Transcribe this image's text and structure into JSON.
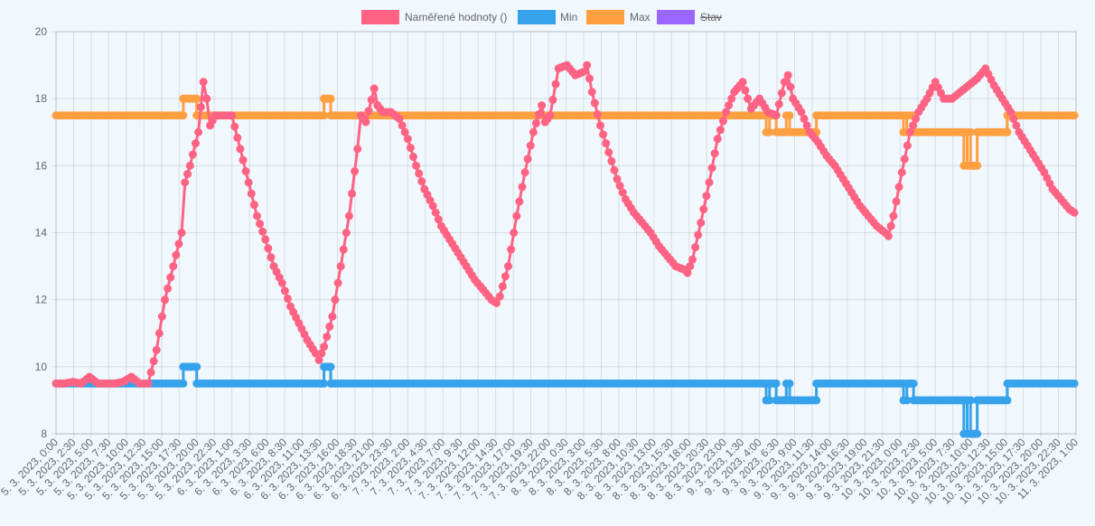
{
  "chart_data": {
    "type": "line",
    "title": "",
    "xlabel": "",
    "ylabel": "",
    "ylim": [
      8,
      20
    ],
    "yticks": [
      8,
      10,
      12,
      14,
      16,
      18,
      20
    ],
    "grid": true,
    "legend_position": "top",
    "x_labels": [
      "5. 3. 2023, 0:00",
      "5. 3. 2023, 2:30",
      "5. 3. 2023, 5:00",
      "5. 3. 2023, 7:30",
      "5. 3. 2023, 10:00",
      "5. 3. 2023, 12:30",
      "5. 3. 2023, 15:00",
      "5. 3. 2023, 17:30",
      "5. 3. 2023, 20:00",
      "5. 3. 2023, 22:30",
      "6. 3. 2023, 1:00",
      "6. 3. 2023, 3:30",
      "6. 3. 2023, 6:00",
      "6. 3. 2023, 8:30",
      "6. 3. 2023, 11:00",
      "6. 3. 2023, 13:30",
      "6. 3. 2023, 16:00",
      "6. 3. 2023, 18:30",
      "6. 3. 2023, 21:00",
      "6. 3. 2023, 23:30",
      "7. 3. 2023, 2:00",
      "7. 3. 2023, 4:30",
      "7. 3. 2023, 7:00",
      "7. 3. 2023, 9:30",
      "7. 3. 2023, 12:00",
      "7. 3. 2023, 14:30",
      "7. 3. 2023, 17:00",
      "7. 3. 2023, 19:30",
      "7. 3. 2023, 22:00",
      "8. 3. 2023, 0:30",
      "8. 3. 2023, 3:00",
      "8. 3. 2023, 5:30",
      "8. 3. 2023, 8:00",
      "8. 3. 2023, 10:30",
      "8. 3. 2023, 13:00",
      "8. 3. 2023, 15:30",
      "8. 3. 2023, 18:00",
      "8. 3. 2023, 20:30",
      "8. 3. 2023, 23:00",
      "9. 3. 2023, 1:30",
      "9. 3. 2023, 4:00",
      "9. 3. 2023, 6:30",
      "9. 3. 2023, 9:00",
      "9. 3. 2023, 11:30",
      "9. 3. 2023, 14:00",
      "9. 3. 2023, 16:30",
      "9. 3. 2023, 19:00",
      "9. 3. 2023, 21:30",
      "10. 3. 2023, 0:00",
      "10. 3. 2023, 2:30",
      "10. 3. 2023, 5:00",
      "10. 3. 2023, 7:30",
      "10. 3. 2023, 10:00",
      "10. 3. 2023, 12:30",
      "10. 3. 2023, 15:00",
      "10. 3. 2023, 17:30",
      "10. 3. 2023, 20:00",
      "10. 3. 2023, 22:30",
      "11. 3. 2023, 1:00"
    ],
    "series": [
      {
        "name": "Naměřené hodnoty ()",
        "color": "#ff6384",
        "hidden": false,
        "points": [
          [
            0,
            9.5
          ],
          [
            2.5,
            9.5
          ],
          [
            5,
            9.55
          ],
          [
            7.5,
            9.5
          ],
          [
            10,
            9.7
          ],
          [
            12.5,
            9.5
          ],
          [
            15,
            9.5
          ],
          [
            17.5,
            9.5
          ],
          [
            20,
            9.55
          ],
          [
            22.5,
            9.7
          ],
          [
            25,
            9.5
          ],
          [
            27.5,
            9.5
          ],
          [
            30,
            10.5
          ],
          [
            32.5,
            12.0
          ],
          [
            35,
            13.0
          ],
          [
            37.5,
            14.0
          ],
          [
            38.5,
            15.5
          ],
          [
            40,
            16.0
          ],
          [
            42.5,
            17.0
          ],
          [
            44,
            18.5
          ],
          [
            45,
            18.0
          ],
          [
            46,
            17.2
          ],
          [
            47.5,
            17.5
          ],
          [
            50,
            17.5
          ],
          [
            52.5,
            17.5
          ],
          [
            55,
            16.5
          ],
          [
            57.5,
            15.5
          ],
          [
            60,
            14.5
          ],
          [
            62.5,
            13.8
          ],
          [
            65,
            13.0
          ],
          [
            67.5,
            12.5
          ],
          [
            70,
            11.8
          ],
          [
            72.5,
            11.3
          ],
          [
            75,
            10.8
          ],
          [
            77.5,
            10.4
          ],
          [
            78.5,
            10.2
          ],
          [
            80,
            10.6
          ],
          [
            82.5,
            11.5
          ],
          [
            85,
            13.0
          ],
          [
            87.5,
            14.5
          ],
          [
            90,
            16.5
          ],
          [
            91,
            17.5
          ],
          [
            92.5,
            17.3
          ],
          [
            95,
            18.3
          ],
          [
            96,
            17.8
          ],
          [
            97.5,
            17.6
          ],
          [
            100,
            17.6
          ],
          [
            102.5,
            17.4
          ],
          [
            105,
            16.8
          ],
          [
            107.5,
            16.0
          ],
          [
            110,
            15.3
          ],
          [
            112.5,
            14.8
          ],
          [
            115,
            14.2
          ],
          [
            117.5,
            13.8
          ],
          [
            120,
            13.4
          ],
          [
            122.5,
            13.0
          ],
          [
            125,
            12.6
          ],
          [
            127.5,
            12.3
          ],
          [
            130,
            12.0
          ],
          [
            131.5,
            11.9
          ],
          [
            132.5,
            12.1
          ],
          [
            135,
            13.0
          ],
          [
            137.5,
            14.5
          ],
          [
            140,
            15.8
          ],
          [
            142.5,
            17.0
          ],
          [
            145,
            17.8
          ],
          [
            146,
            17.3
          ],
          [
            147.5,
            17.5
          ],
          [
            150,
            18.9
          ],
          [
            152.5,
            19.0
          ],
          [
            155,
            18.7
          ],
          [
            157.5,
            18.8
          ],
          [
            158.5,
            19.0
          ],
          [
            160,
            18.2
          ],
          [
            162.5,
            17.2
          ],
          [
            165,
            16.4
          ],
          [
            167.5,
            15.6
          ],
          [
            170,
            15.0
          ],
          [
            172.5,
            14.6
          ],
          [
            175,
            14.3
          ],
          [
            177.5,
            14.0
          ],
          [
            180,
            13.6
          ],
          [
            182.5,
            13.3
          ],
          [
            185,
            13.0
          ],
          [
            187.5,
            12.9
          ],
          [
            188.5,
            12.8
          ],
          [
            190,
            13.2
          ],
          [
            192.5,
            14.3
          ],
          [
            195,
            15.5
          ],
          [
            197.5,
            16.8
          ],
          [
            200,
            17.6
          ],
          [
            202.5,
            18.2
          ],
          [
            205,
            18.5
          ],
          [
            206.5,
            18.0
          ],
          [
            207.5,
            17.7
          ],
          [
            210,
            18.0
          ],
          [
            212.5,
            17.6
          ],
          [
            215,
            17.5
          ],
          [
            217.5,
            18.5
          ],
          [
            218.5,
            18.7
          ],
          [
            220,
            18.0
          ],
          [
            222.5,
            17.6
          ],
          [
            225,
            17.0
          ],
          [
            227.5,
            16.7
          ],
          [
            230,
            16.3
          ],
          [
            232.5,
            16.0
          ],
          [
            235,
            15.6
          ],
          [
            237.5,
            15.2
          ],
          [
            240,
            14.8
          ],
          [
            242.5,
            14.5
          ],
          [
            245,
            14.2
          ],
          [
            247.5,
            14.0
          ],
          [
            248.5,
            13.9
          ],
          [
            250,
            14.5
          ],
          [
            252.5,
            15.8
          ],
          [
            255,
            17.0
          ],
          [
            257.5,
            17.6
          ],
          [
            260,
            18.0
          ],
          [
            262.5,
            18.5
          ],
          [
            265,
            18.0
          ],
          [
            267.5,
            18.0
          ],
          [
            270,
            18.2
          ],
          [
            272.5,
            18.4
          ],
          [
            275,
            18.6
          ],
          [
            277.5,
            18.9
          ],
          [
            280,
            18.4
          ],
          [
            282.5,
            18.0
          ],
          [
            285,
            17.6
          ],
          [
            287.5,
            17.0
          ],
          [
            290,
            16.6
          ],
          [
            292.5,
            16.2
          ],
          [
            295,
            15.8
          ],
          [
            297.5,
            15.3
          ],
          [
            300,
            15.0
          ],
          [
            302.5,
            14.7
          ],
          [
            304,
            14.6
          ]
        ]
      },
      {
        "name": "Min",
        "color": "#36a2eb",
        "hidden": false,
        "points": [
          [
            0,
            9.5
          ],
          [
            38,
            9.5
          ],
          [
            38,
            10.0
          ],
          [
            42,
            10.0
          ],
          [
            42,
            9.5
          ],
          [
            80,
            9.5
          ],
          [
            80,
            10.0
          ],
          [
            82,
            10.0
          ],
          [
            82,
            9.5
          ],
          [
            212,
            9.5
          ],
          [
            212,
            9.0
          ],
          [
            213,
            9.0
          ],
          [
            213,
            9.5
          ],
          [
            215,
            9.5
          ],
          [
            215,
            9.0
          ],
          [
            218,
            9.0
          ],
          [
            218,
            9.5
          ],
          [
            219,
            9.5
          ],
          [
            219,
            9.0
          ],
          [
            227,
            9.0
          ],
          [
            227,
            9.5
          ],
          [
            253,
            9.5
          ],
          [
            253,
            9.0
          ],
          [
            254,
            9.0
          ],
          [
            254,
            9.5
          ],
          [
            256,
            9.5
          ],
          [
            256,
            9.0
          ],
          [
            271,
            9.0
          ],
          [
            271,
            8.0
          ],
          [
            272,
            8.0
          ],
          [
            272,
            9.0
          ],
          [
            273,
            9.0
          ],
          [
            273,
            8.0
          ],
          [
            275,
            8.0
          ],
          [
            275,
            9.0
          ],
          [
            284,
            9.0
          ],
          [
            284,
            9.5
          ],
          [
            304,
            9.5
          ]
        ]
      },
      {
        "name": "Max",
        "color": "#ff9f40",
        "hidden": false,
        "points": [
          [
            0,
            17.5
          ],
          [
            38,
            17.5
          ],
          [
            38,
            18.0
          ],
          [
            42,
            18.0
          ],
          [
            42,
            17.5
          ],
          [
            80,
            17.5
          ],
          [
            80,
            18.0
          ],
          [
            82,
            18.0
          ],
          [
            82,
            17.5
          ],
          [
            212,
            17.5
          ],
          [
            212,
            17.0
          ],
          [
            213,
            17.0
          ],
          [
            213,
            17.5
          ],
          [
            215,
            17.5
          ],
          [
            215,
            17.0
          ],
          [
            218,
            17.0
          ],
          [
            218,
            17.5
          ],
          [
            219,
            17.5
          ],
          [
            219,
            17.0
          ],
          [
            227,
            17.0
          ],
          [
            227,
            17.5
          ],
          [
            253,
            17.5
          ],
          [
            253,
            17.0
          ],
          [
            254,
            17.0
          ],
          [
            254,
            17.5
          ],
          [
            256,
            17.5
          ],
          [
            256,
            17.0
          ],
          [
            271,
            17.0
          ],
          [
            271,
            16.0
          ],
          [
            272,
            16.0
          ],
          [
            272,
            17.0
          ],
          [
            273,
            17.0
          ],
          [
            273,
            16.0
          ],
          [
            275,
            16.0
          ],
          [
            275,
            17.0
          ],
          [
            284,
            17.0
          ],
          [
            284,
            17.5
          ],
          [
            304,
            17.5
          ]
        ]
      },
      {
        "name": "Stav",
        "color": "#9966ff",
        "hidden": true,
        "points": []
      }
    ]
  }
}
